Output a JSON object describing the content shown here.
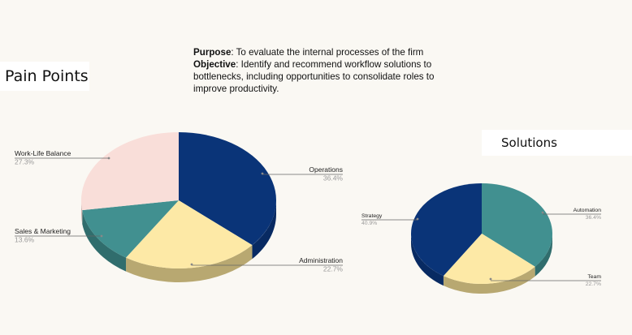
{
  "header": {
    "purpose_label": "Purpose",
    "purpose_text": ": To evaluate the internal processes of the firm",
    "objective_label": "Objective",
    "objective_text": ": Identify and recommend workflow solutions to bottlenecks, including opportunities to consolidate roles to improve productivity."
  },
  "pain_title": "Pain Points",
  "solutions_title": "Solutions",
  "chart_data": [
    {
      "type": "pie",
      "title": "Pain Points",
      "slices": [
        {
          "label": "Operations",
          "value": 36.4,
          "pct": "36.4%",
          "color": "#0a3478",
          "side": "#082a62"
        },
        {
          "label": "Administration",
          "value": 22.7,
          "pct": "22.7%",
          "color": "#fde9a6",
          "side": "#b8a871"
        },
        {
          "label": "Sales & Marketing",
          "value": 13.6,
          "pct": "13.6%",
          "color": "#419090",
          "side": "#306d6d"
        },
        {
          "label": "Work-Life Balance",
          "value": 27.3,
          "pct": "27.3%",
          "color": "#f9ded9",
          "side": "#cdb5b0"
        }
      ]
    },
    {
      "type": "pie",
      "title": "Solutions",
      "slices": [
        {
          "label": "Automation",
          "value": 36.4,
          "pct": "36.4%",
          "color": "#419090",
          "side": "#306d6d"
        },
        {
          "label": "Team",
          "value": 22.7,
          "pct": "22.7%",
          "color": "#fde9a6",
          "side": "#b8a871"
        },
        {
          "label": "Strategy",
          "value": 40.9,
          "pct": "40.9%",
          "color": "#0a3478",
          "side": "#082a62"
        }
      ]
    }
  ]
}
